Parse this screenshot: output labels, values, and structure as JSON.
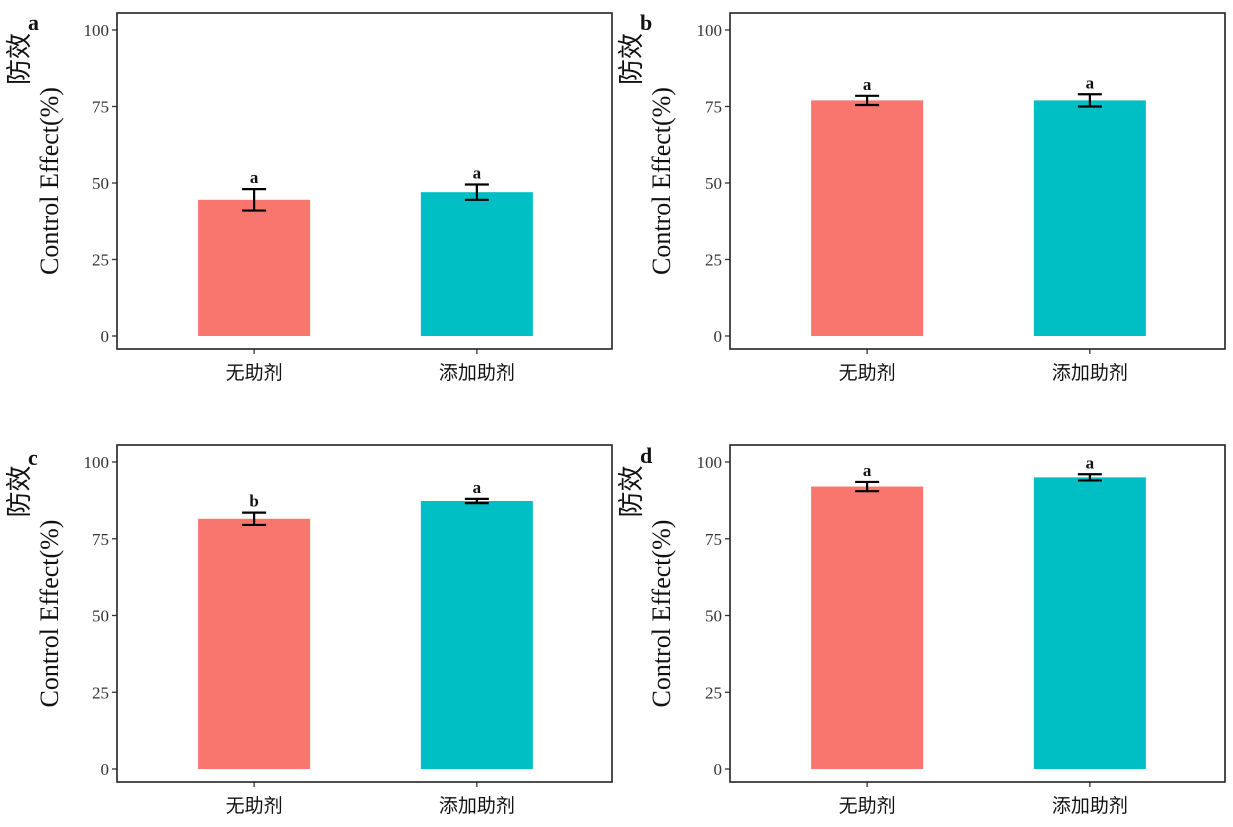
{
  "chart_data": [
    {
      "panel": "a",
      "type": "bar",
      "categories": [
        "无助剂",
        "添加助剂"
      ],
      "values": [
        44.5,
        47
      ],
      "errors": [
        3.5,
        2.5
      ],
      "significance": [
        "a",
        "a"
      ],
      "colors": [
        "#F8766D",
        "#00BFC4"
      ],
      "ylabel_cn": "防效",
      "ylabel": "Control Effect(%)",
      "ylim": [
        0,
        100
      ],
      "yticks": [
        "0",
        "25",
        "50",
        "75",
        "100"
      ]
    },
    {
      "panel": "b",
      "type": "bar",
      "categories": [
        "无助剂",
        "添加助剂"
      ],
      "values": [
        77,
        77
      ],
      "errors": [
        1.5,
        2
      ],
      "significance": [
        "a",
        "a"
      ],
      "colors": [
        "#F8766D",
        "#00BFC4"
      ],
      "ylabel_cn": "防效",
      "ylabel": "Control Effect(%)",
      "ylim": [
        0,
        100
      ],
      "yticks": [
        "0",
        "25",
        "50",
        "75",
        "100"
      ]
    },
    {
      "panel": "c",
      "type": "bar",
      "categories": [
        "无助剂",
        "添加助剂"
      ],
      "values": [
        81.5,
        87.3
      ],
      "errors": [
        2,
        0.7
      ],
      "significance": [
        "b",
        "a"
      ],
      "colors": [
        "#F8766D",
        "#00BFC4"
      ],
      "ylabel_cn": "防效",
      "ylabel": "Control Effect(%)",
      "ylim": [
        0,
        100
      ],
      "yticks": [
        "0",
        "25",
        "50",
        "75",
        "100"
      ]
    },
    {
      "panel": "d",
      "type": "bar",
      "categories": [
        "无助剂",
        "添加助剂"
      ],
      "values": [
        92,
        95
      ],
      "errors": [
        1.5,
        1
      ],
      "significance": [
        "a",
        "a"
      ],
      "colors": [
        "#F8766D",
        "#00BFC4"
      ],
      "ylabel_cn": "防效",
      "ylabel": "Control Effect(%)",
      "ylim": [
        0,
        100
      ],
      "yticks": [
        "0",
        "25",
        "50",
        "75",
        "100"
      ]
    }
  ]
}
